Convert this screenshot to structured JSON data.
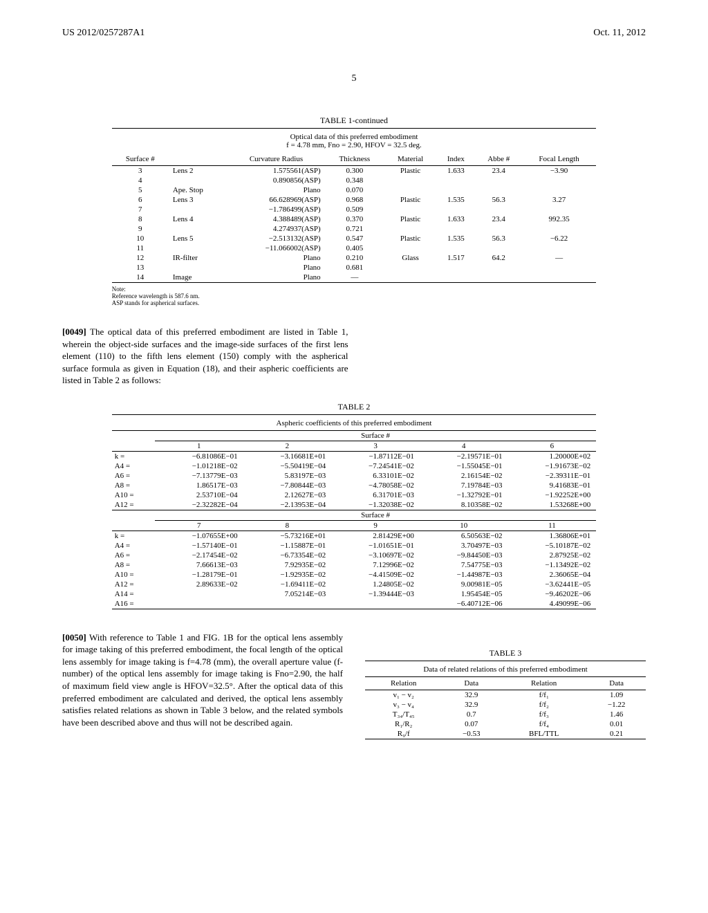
{
  "header": {
    "left": "US 2012/0257287A1",
    "right": "Oct. 11, 2012"
  },
  "page_number": "5",
  "table1": {
    "title": "TABLE 1-continued",
    "caption": "Optical data of this preferred embodiment",
    "subcaption": "f = 4.78 mm, Fno = 2.90, HFOV = 32.5 deg.",
    "cols": [
      "Surface #",
      "",
      "Curvature Radius",
      "Thickness",
      "Material",
      "Index",
      "Abbe #",
      "Focal Length"
    ],
    "rows": [
      [
        "3",
        "Lens 2",
        "1.575561(ASP)",
        "0.300",
        "Plastic",
        "1.633",
        "23.4",
        "−3.90"
      ],
      [
        "4",
        "",
        "0.890856(ASP)",
        "0.348",
        "",
        "",
        "",
        ""
      ],
      [
        "5",
        "Ape. Stop",
        "Plano",
        "0.070",
        "",
        "",
        "",
        ""
      ],
      [
        "6",
        "Lens 3",
        "66.628969(ASP)",
        "0.968",
        "Plastic",
        "1.535",
        "56.3",
        "3.27"
      ],
      [
        "7",
        "",
        "−1.786499(ASP)",
        "0.509",
        "",
        "",
        "",
        ""
      ],
      [
        "8",
        "Lens 4",
        "4.388489(ASP)",
        "0.370",
        "Plastic",
        "1.633",
        "23.4",
        "992.35"
      ],
      [
        "9",
        "",
        "4.274937(ASP)",
        "0.721",
        "",
        "",
        "",
        ""
      ],
      [
        "10",
        "Lens 5",
        "−2.513132(ASP)",
        "0.547",
        "Plastic",
        "1.535",
        "56.3",
        "−6.22"
      ],
      [
        "11",
        "",
        "−11.066002(ASP)",
        "0.405",
        "",
        "",
        "",
        ""
      ],
      [
        "12",
        "IR-filter",
        "Plano",
        "0.210",
        "Glass",
        "1.517",
        "64.2",
        "—"
      ],
      [
        "13",
        "",
        "Plano",
        "0.681",
        "",
        "",
        "",
        ""
      ],
      [
        "14",
        "Image",
        "Plano",
        "—",
        "",
        "",
        "",
        ""
      ]
    ],
    "notes": [
      "Note:",
      "Reference wavelength is 587.6 nm.",
      "ASP stands for aspherical surfaces."
    ]
  },
  "para49": {
    "label": "[0049]",
    "text": "  The optical data of this preferred embodiment are listed in Table 1, wherein the object-side surfaces and the image-side surfaces of the first lens element (110) to the fifth lens element (150) comply with the aspherical surface formula as given in Equation (18), and their aspheric coefficients are listed in Table 2 as follows:"
  },
  "table2": {
    "title": "TABLE 2",
    "caption": "Aspheric coefficients of this preferred embodiment",
    "surface_label": "Surface #",
    "section_a": {
      "cols": [
        "1",
        "2",
        "3",
        "4",
        "6"
      ],
      "rows": [
        [
          "k =",
          "−6.81086E−01",
          "−3.16681E+01",
          "−1.87112E−01",
          "−2.19571E−01",
          "1.20000E+02"
        ],
        [
          "A4 =",
          "−1.01218E−02",
          "−5.50419E−04",
          "−7.24541E−02",
          "−1.55045E−01",
          "−1.91673E−02"
        ],
        [
          "A6 =",
          "−7.13779E−03",
          "5.83197E−03",
          "6.33101E−02",
          "2.16154E−02",
          "−2.39311E−01"
        ],
        [
          "A8 =",
          "1.86517E−03",
          "−7.80844E−03",
          "−4.78058E−02",
          "7.19784E−03",
          "9.41683E−01"
        ],
        [
          "A10 =",
          "2.53710E−04",
          "2.12627E−03",
          "6.31701E−03",
          "−1.32792E−01",
          "−1.92252E+00"
        ],
        [
          "A12 =",
          "−2.32282E−04",
          "−2.13953E−04",
          "−1.32038E−02",
          "8.10358E−02",
          "1.53268E+00"
        ]
      ]
    },
    "section_b": {
      "cols": [
        "7",
        "8",
        "9",
        "10",
        "11"
      ],
      "rows": [
        [
          "k =",
          "−1.07655E+00",
          "−5.73216E+01",
          "2.81429E+00",
          "6.50563E−02",
          "1.36806E+01"
        ],
        [
          "A4 =",
          "−1.57140E−01",
          "−1.15887E−01",
          "−1.01651E−01",
          "3.70497E−03",
          "−5.10187E−02"
        ],
        [
          "A6 =",
          "−2.17454E−02",
          "−6.73354E−02",
          "−3.10697E−02",
          "−9.84450E−03",
          "2.87925E−02"
        ],
        [
          "A8 =",
          "7.66613E−03",
          "7.92935E−02",
          "7.12996E−02",
          "7.54775E−03",
          "−1.13492E−02"
        ],
        [
          "A10 =",
          "−1.28179E−01",
          "−1.92935E−02",
          "−4.41509E−02",
          "−1.44987E−03",
          "2.36065E−04"
        ],
        [
          "A12 =",
          "2.89633E−02",
          "−1.69411E−02",
          "1.24805E−02",
          "9.00981E−05",
          "−3.62441E−05"
        ],
        [
          "A14 =",
          "",
          "7.05214E−03",
          "−1.39444E−03",
          "1.95454E−05",
          "−9.46202E−06"
        ],
        [
          "A16 =",
          "",
          "",
          "",
          "−6.40712E−06",
          "4.49099E−06"
        ]
      ]
    }
  },
  "para50": {
    "label": "[0050]",
    "text": "  With reference to Table 1 and FIG. 1B for the optical lens assembly for image taking of this preferred embodiment, the focal length of the optical lens assembly for image taking is f=4.78 (mm), the overall aperture value (f-number) of the optical lens assembly for image taking is Fno=2.90, the half of maximum field view angle is HFOV=32.5°. After the optical data of this preferred embodiment are calculated and derived, the optical lens assembly satisfies related relations as shown in Table 3 below, and the related symbols have been described above and thus will not be described again."
  },
  "table3": {
    "title": "TABLE 3",
    "caption": "Data of related relations of this preferred embodiment",
    "cols": [
      "Relation",
      "Data",
      "Relation",
      "Data"
    ],
    "rows": [
      [
        "v₁ − v₂",
        "32.9",
        "f/f₁",
        "1.09"
      ],
      [
        "v₃ − v₄",
        "32.9",
        "f/f₂",
        "−1.22"
      ],
      [
        "T₃₄/T₄₅",
        "0.7",
        "f/f₃",
        "1.46"
      ],
      [
        "R₁/R₂",
        "0.07",
        "f/f₄",
        "0.01"
      ],
      [
        "R₉/f",
        "−0.53",
        "BFL/TTL",
        "0.21"
      ]
    ]
  }
}
